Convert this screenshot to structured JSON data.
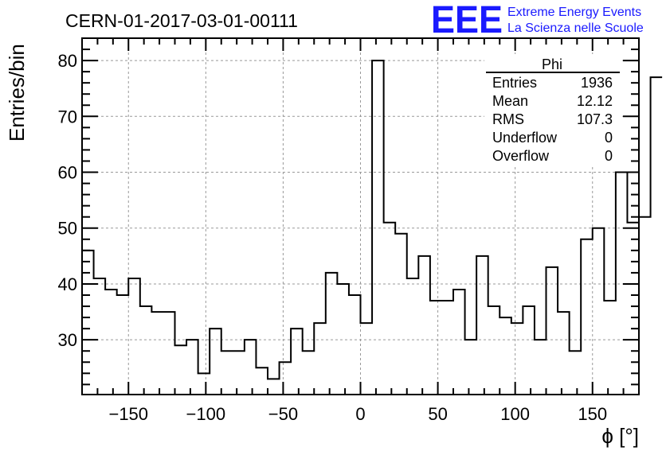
{
  "header": {
    "run_title": "CERN-01-2017-03-01-00111",
    "logo_text": "EEE",
    "logo_line1": "Extreme Energy Events",
    "logo_line2": "La Scienza nelle Scuole",
    "logo_color": "#1a1aff"
  },
  "stats_box": {
    "title": "Phi",
    "rows": [
      {
        "label": "Entries",
        "value": "1936"
      },
      {
        "label": "Mean",
        "value": "12.12"
      },
      {
        "label": "RMS",
        "value": "107.3"
      },
      {
        "label": "Underflow",
        "value": "0"
      },
      {
        "label": "Overflow",
        "value": "0"
      }
    ]
  },
  "chart_data": {
    "type": "histogram",
    "xlabel": "ϕ [°]",
    "ylabel": "Entries/bin",
    "xlim": [
      -180,
      180
    ],
    "ylim": [
      20.2,
      84
    ],
    "x_ticks": [
      -150,
      -100,
      -50,
      0,
      50,
      100,
      150
    ],
    "x_tick_labels": [
      "−150",
      "−100",
      "−50",
      "0",
      "50",
      "100",
      "150"
    ],
    "y_ticks": [
      30,
      40,
      50,
      60,
      70,
      80
    ],
    "y_tick_labels": [
      "30",
      "40",
      "50",
      "60",
      "70",
      "80"
    ],
    "grid": true,
    "bin_edges_start": -180,
    "bin_width": 7.5,
    "values": [
      46,
      41,
      39,
      38,
      41,
      36,
      35,
      35,
      29,
      30,
      24,
      32,
      28,
      28,
      30,
      25,
      23,
      26,
      32,
      28,
      33,
      42,
      40,
      38,
      33,
      80,
      51,
      49,
      41,
      45,
      37,
      37,
      39,
      30,
      45,
      36,
      34,
      33,
      36,
      30,
      43,
      35,
      28,
      48,
      50,
      37,
      60,
      51,
      52,
      77
    ],
    "line_color": "#000000",
    "legend": "top-right"
  }
}
